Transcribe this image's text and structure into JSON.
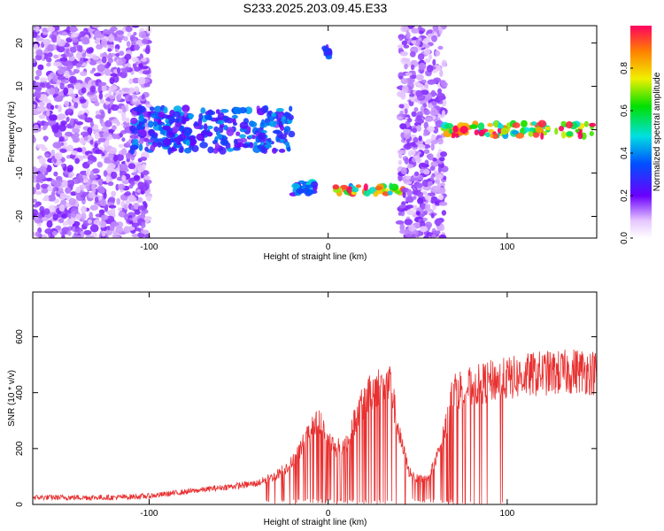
{
  "title": "S233.2025.203.09.45.E33",
  "colors": {
    "signal": "#e83030",
    "axis": "#000000"
  },
  "chart_data": [
    {
      "type": "heatmap",
      "xlabel": "Height of straight line (km)",
      "ylabel": "Frequency (Hz)",
      "xlim": [
        -165,
        150
      ],
      "ylim": [
        -25,
        24
      ],
      "xticks": [
        -100,
        0,
        100
      ],
      "xtick_labels": [
        "-100",
        "0",
        "100"
      ],
      "yticks": [
        -20,
        -10,
        0,
        10,
        20
      ],
      "ytick_labels": [
        "-20",
        "-10",
        "0",
        "10",
        "20"
      ],
      "colorbar": {
        "label": "Normalized spectral amplitude",
        "range": [
          0,
          1
        ],
        "ticks": [
          0.0,
          0.2,
          0.4,
          0.6,
          0.8
        ],
        "tick_labels": [
          "0.0",
          "0.2",
          "0.4",
          "0.6",
          "0.8"
        ]
      },
      "features": [
        {
          "name": "noise band",
          "x": [
            -165,
            -100
          ],
          "freq": [
            -25,
            24
          ],
          "amplitude": 0.15
        },
        {
          "name": "band near 0 Hz",
          "x": [
            -110,
            -20
          ],
          "freq": [
            -5,
            5
          ],
          "amplitude": 0.35
        },
        {
          "name": "band near 14 Hz",
          "x": [
            -2,
            2
          ],
          "freq": [
            16,
            19
          ],
          "amplitude": 0.3
        },
        {
          "name": "band near -14 Hz",
          "x": [
            -20,
            -7
          ],
          "freq": [
            -15,
            -12
          ],
          "amplitude": 0.4
        },
        {
          "name": "band near -14 Hz",
          "x": [
            2,
            42
          ],
          "freq": [
            -15,
            -13
          ],
          "amplitude": 0.85
        },
        {
          "name": "noise band",
          "x": [
            40,
            65
          ],
          "freq": [
            -25,
            24
          ],
          "amplitude": 0.15
        },
        {
          "name": "band near 0 Hz",
          "x": [
            65,
            150
          ],
          "freq": [
            -1.5,
            1.5
          ],
          "amplitude": 0.9
        }
      ]
    },
    {
      "type": "line",
      "xlabel": "Height of straight line (km)",
      "ylabel": "SNR (10 * v/v)",
      "xlim": [
        -165,
        150
      ],
      "ylim": [
        0,
        760
      ],
      "xticks": [
        -100,
        0,
        100
      ],
      "xtick_labels": [
        "-100",
        "0",
        "100"
      ],
      "yticks": [
        0,
        200,
        400,
        600
      ],
      "ytick_labels": [
        "0",
        "200",
        "400",
        "600"
      ],
      "series_profile": {
        "x": [
          -165,
          -120,
          -100,
          -80,
          -60,
          -40,
          -30,
          -20,
          -10,
          -5,
          0,
          5,
          10,
          15,
          20,
          25,
          30,
          35,
          40,
          45,
          50,
          55,
          60,
          65,
          70,
          80,
          90,
          100,
          110,
          120,
          130,
          140,
          150
        ],
        "y": [
          25,
          25,
          30,
          45,
          60,
          75,
          100,
          150,
          260,
          300,
          230,
          200,
          220,
          300,
          370,
          410,
          430,
          420,
          240,
          120,
          90,
          95,
          150,
          260,
          410,
          420,
          440,
          450,
          460,
          470,
          470,
          480,
          470
        ]
      }
    }
  ]
}
